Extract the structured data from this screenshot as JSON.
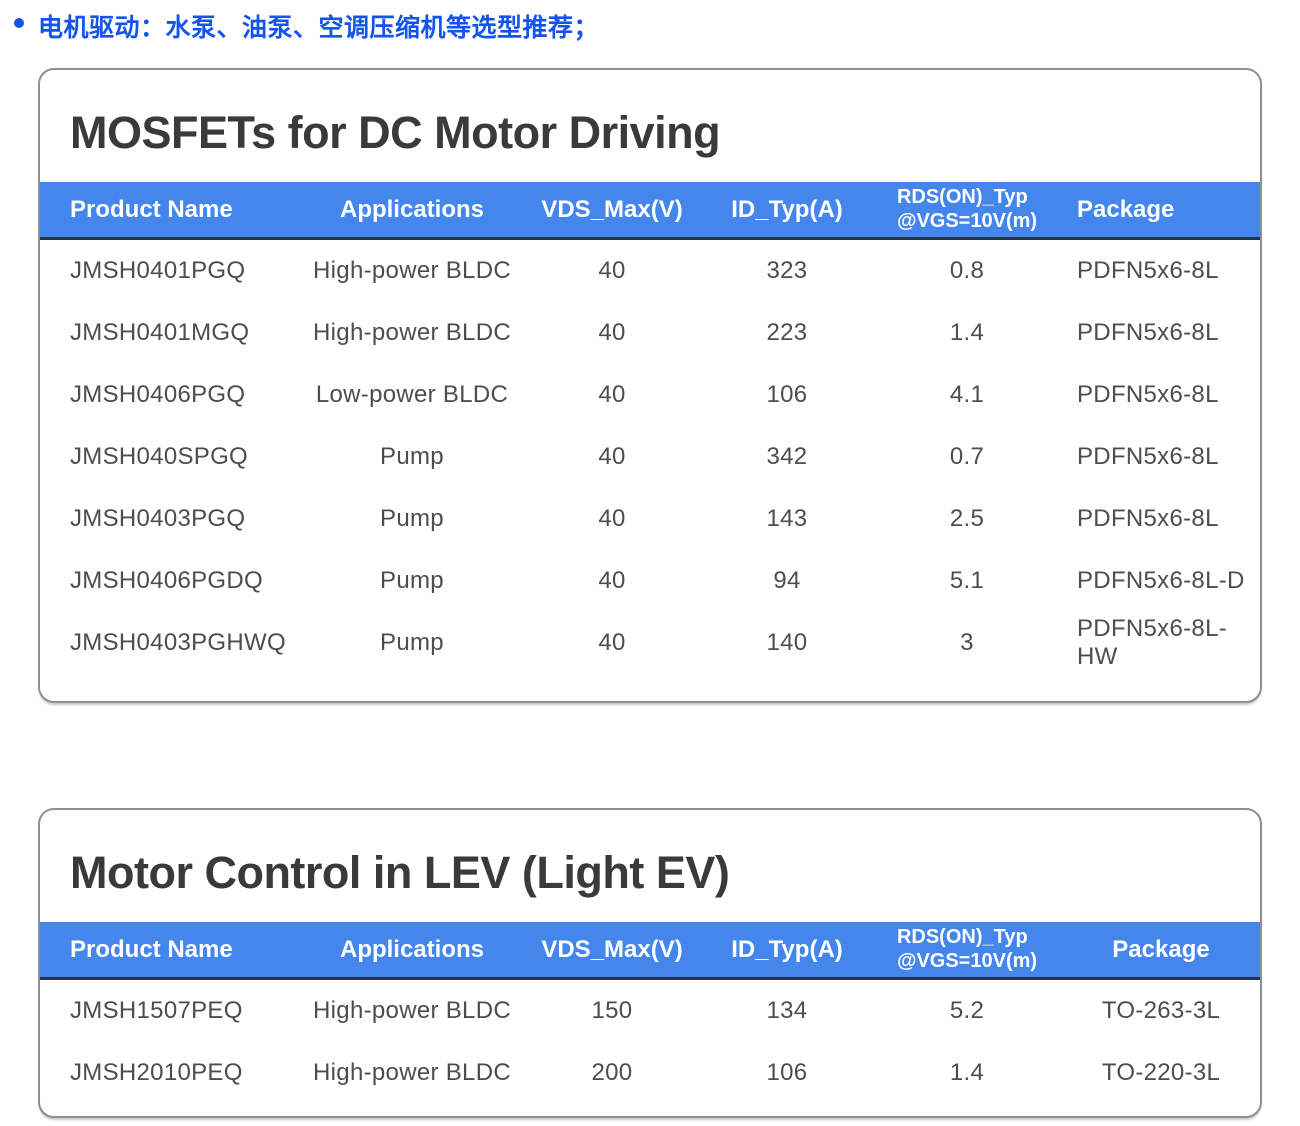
{
  "bullet": {
    "text": "电机驱动：水泵、油泵、空调压缩机等选型推荐；"
  },
  "colors": {
    "header_blue": "#4486EC",
    "bullet_blue": "#1454EC",
    "title_gray": "#3A3A3A",
    "body_gray": "#4D4D4D",
    "card_border": "#8F8F8F"
  },
  "tables": [
    {
      "title": "MOSFETs for DC Motor Driving",
      "header": {
        "c0": "Product Name",
        "c1": "Applications",
        "c2": "VDS_Max(V)",
        "c3": "ID_Typ(A)",
        "c4a": "RDS(ON)_Typ",
        "c4b": "@VGS=10V(m)",
        "c5": "Package"
      },
      "rows": [
        [
          "JMSH0401PGQ",
          "High-power BLDC",
          "40",
          "323",
          "0.8",
          "PDFN5x6-8L"
        ],
        [
          "JMSH0401MGQ",
          "High-power BLDC",
          "40",
          "223",
          "1.4",
          "PDFN5x6-8L"
        ],
        [
          "JMSH0406PGQ",
          "Low-power BLDC",
          "40",
          "106",
          "4.1",
          "PDFN5x6-8L"
        ],
        [
          "JMSH040SPGQ",
          "Pump",
          "40",
          "342",
          "0.7",
          "PDFN5x6-8L"
        ],
        [
          "JMSH0403PGQ",
          "Pump",
          "40",
          "143",
          "2.5",
          "PDFN5x6-8L"
        ],
        [
          "JMSH0406PGDQ",
          "Pump",
          "40",
          "94",
          "5.1",
          "PDFN5x6-8L-D"
        ],
        [
          "JMSH0403PGHWQ",
          "Pump",
          "40",
          "140",
          "3",
          "PDFN5x6-8L-HW"
        ]
      ]
    },
    {
      "title": "Motor Control in LEV (Light EV)",
      "header": {
        "c0": "Product Name",
        "c1": "Applications",
        "c2": "VDS_Max(V)",
        "c3": "ID_Typ(A)",
        "c4a": "RDS(ON)_Typ",
        "c4b": "@VGS=10V(m)",
        "c5": "Package"
      },
      "rows": [
        [
          "JMSH1507PEQ",
          "High-power BLDC",
          "150",
          "134",
          "5.2",
          "TO-263-3L"
        ],
        [
          "JMSH2010PEQ",
          "High-power BLDC",
          "200",
          "106",
          "1.4",
          "TO-220-3L"
        ]
      ]
    }
  ]
}
